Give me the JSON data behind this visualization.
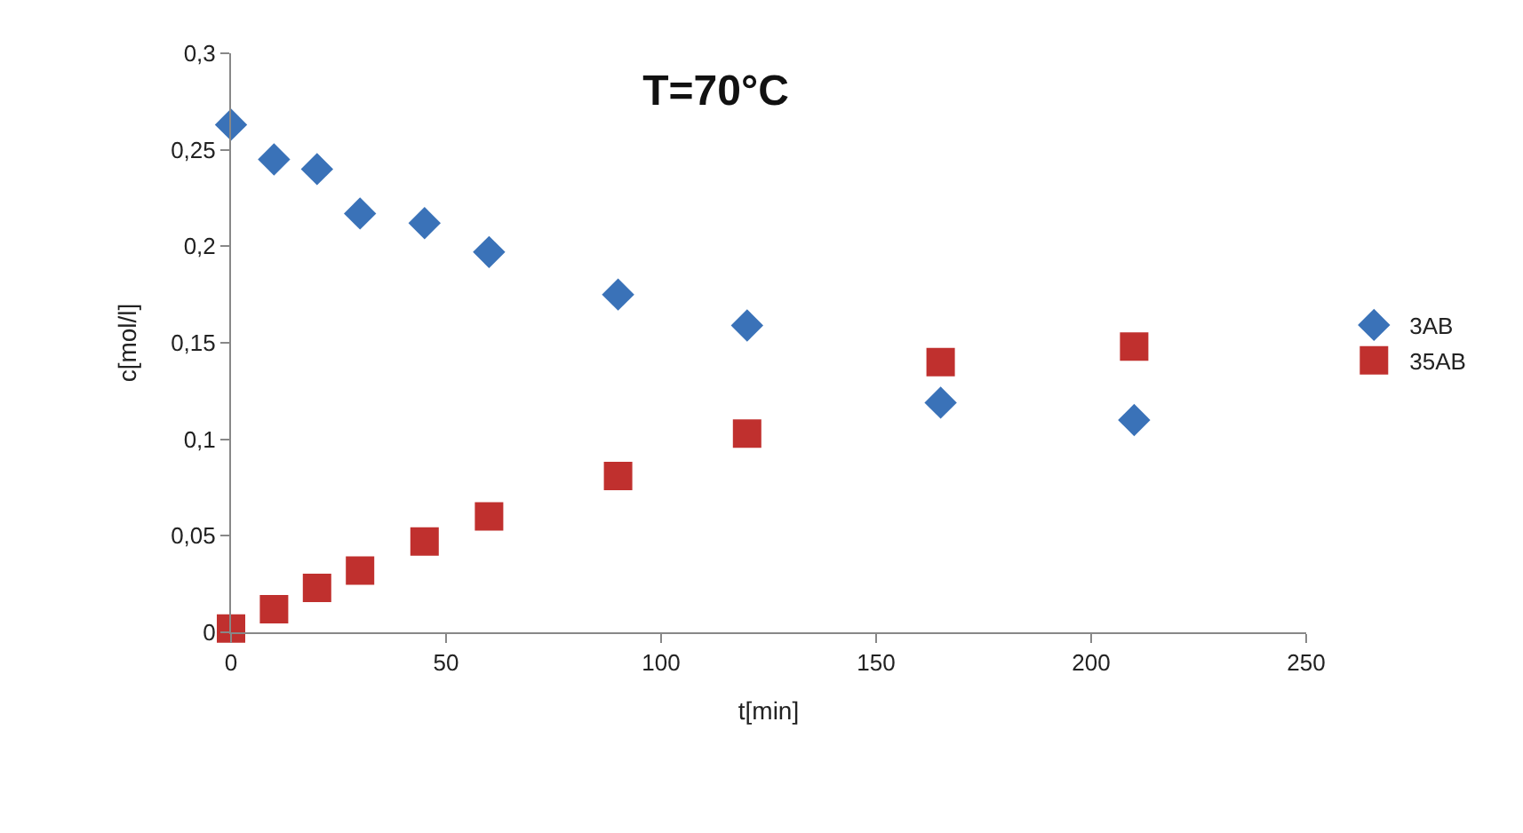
{
  "chart_data": {
    "type": "scatter",
    "title": "T=70°C",
    "xlabel": "t[min]",
    "ylabel": "c[mol/l]",
    "x": [
      0,
      10,
      20,
      30,
      45,
      60,
      90,
      120,
      165,
      210
    ],
    "series": [
      {
        "name": "3AB",
        "color": "#3a72b8",
        "marker": "diamond",
        "values": [
          0.263,
          0.245,
          0.24,
          0.217,
          0.212,
          0.197,
          0.175,
          0.159,
          0.119,
          0.11
        ]
      },
      {
        "name": "35AB",
        "color": "#c0302e",
        "marker": "square",
        "values": [
          0.002,
          0.012,
          0.023,
          0.032,
          0.047,
          0.06,
          0.081,
          0.103,
          0.14,
          0.148
        ]
      }
    ],
    "xlim": [
      0,
      250
    ],
    "xticks": [
      0,
      50,
      100,
      150,
      200,
      250
    ],
    "ylim": [
      0,
      0.3
    ],
    "yticks": [
      0,
      {
        "value": 0.05,
        "label": "0,05"
      },
      {
        "value": 0.1,
        "label": "0,1"
      },
      {
        "value": 0.15,
        "label": "0,15"
      },
      {
        "value": 0.2,
        "label": "0,2"
      },
      {
        "value": 0.25,
        "label": "0,25"
      },
      {
        "value": 0.3,
        "label": "0,3"
      }
    ],
    "legend": "right"
  }
}
